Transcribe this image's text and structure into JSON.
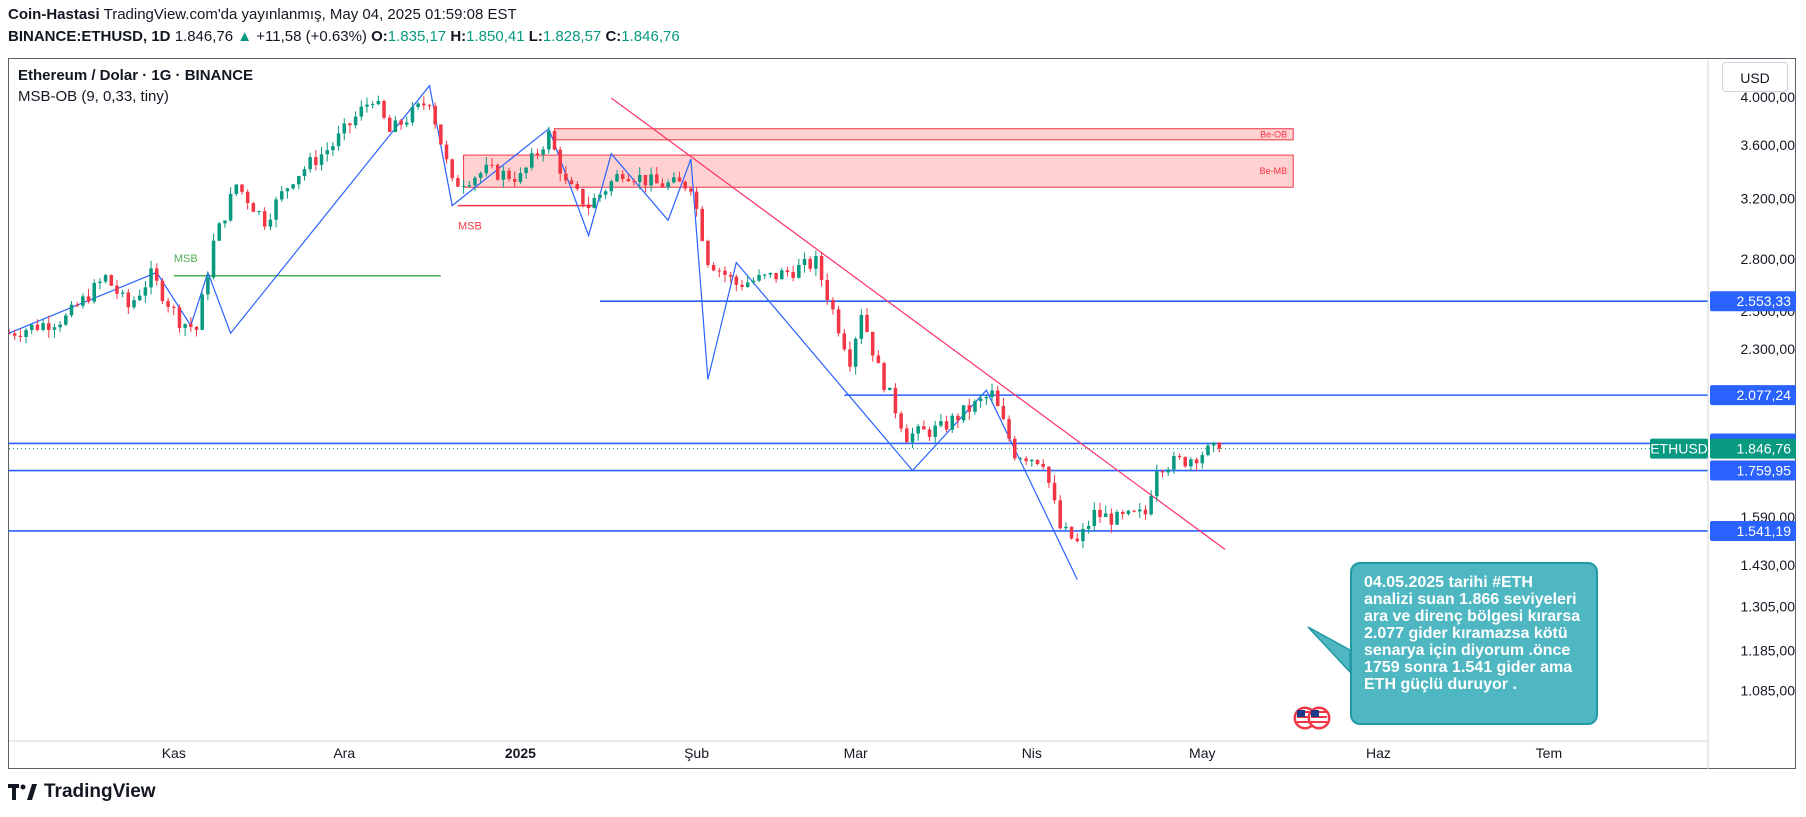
{
  "header": {
    "author": "Coin-Hastasi",
    "published_text": "TradingView.com'da yayınlanmış, May 04, 2025 01:59:08 EST",
    "symbol": "BINANCE:ETHUSD, 1D",
    "last": "1.846,76",
    "change_arrow": "▲",
    "change": "+11,58 (+0.63%)",
    "o_label": "O:",
    "o": "1.835,17",
    "h_label": "H:",
    "h": "1.850,41",
    "l_label": "L:",
    "l": "1.828,57",
    "c_label": "C:",
    "c": "1.846,76"
  },
  "legend": {
    "title": "Ethereum / Dolar · 1G · BINANCE",
    "indicator": "MSB-OB (9, 0,33, tiny)"
  },
  "currency_button": "USD",
  "footer": {
    "brand": "TradingView"
  },
  "note": {
    "text": "04.05.2025 tarihi #ETH analizi suan 1.866 seviyeleri ara ve direnç bölgesi kırarsa 2.077 gider kıramazsa kötü senarya için diyorum .önce 1759 sonra 1.541 gider ama ETH güçlü duruyor ."
  },
  "colors": {
    "up": "#089981",
    "down": "#f23645",
    "hline": "#2962ff",
    "trend": "#ff2e63",
    "zone_fill": "#ffc9c9",
    "zone_border": "#f23645",
    "msb_green": "#4caf50",
    "zigzag": "#2962ff",
    "note_bg": "#4eb7c2"
  },
  "chart_data": {
    "type": "candlestick",
    "symbol": "ETHUSD",
    "yscale": "log",
    "ylim": [
      980,
      4300
    ],
    "y_ticks": [
      {
        "value": 4000,
        "label": "4.000,00"
      },
      {
        "value": 3600,
        "label": "3.600,00"
      },
      {
        "value": 3200,
        "label": "3.200,00"
      },
      {
        "value": 2800,
        "label": "2.800,00"
      },
      {
        "value": 2500,
        "label": "2.500,00"
      },
      {
        "value": 2300,
        "label": "2.300,00"
      },
      {
        "value": 2077.24,
        "label": "2.077,24"
      },
      {
        "value": 1867.97,
        "label": "1.867,97"
      },
      {
        "value": 1590,
        "label": "1.590,00"
      },
      {
        "value": 1430,
        "label": "1.430,00"
      },
      {
        "value": 1305,
        "label": "1.305,00"
      },
      {
        "value": 1185,
        "label": "1.185,00"
      },
      {
        "value": 1085,
        "label": "1.085,00"
      }
    ],
    "x_ticks": [
      {
        "date": "2024-11-01",
        "label": "Kas",
        "bold": false
      },
      {
        "date": "2024-12-01",
        "label": "Ara",
        "bold": false
      },
      {
        "date": "2025-01-01",
        "label": "2025",
        "bold": true
      },
      {
        "date": "2025-02-01",
        "label": "Şub",
        "bold": false
      },
      {
        "date": "2025-03-01",
        "label": "Mar",
        "bold": false
      },
      {
        "date": "2025-04-01",
        "label": "Nis",
        "bold": false
      },
      {
        "date": "2025-05-01",
        "label": "May",
        "bold": false
      },
      {
        "date": "2025-06-01",
        "label": "Haz",
        "bold": false
      },
      {
        "date": "2025-07-01",
        "label": "Tem",
        "bold": false
      }
    ],
    "x_range": [
      "2024-10-03",
      "2025-07-29"
    ],
    "price_path": [
      {
        "date": "2024-10-03",
        "close": 2380
      },
      {
        "date": "2024-10-13",
        "close": 2460
      },
      {
        "date": "2024-10-20",
        "close": 2690
      },
      {
        "date": "2024-10-24",
        "close": 2520
      },
      {
        "date": "2024-10-28",
        "close": 2700
      },
      {
        "date": "2024-11-02",
        "close": 2450
      },
      {
        "date": "2024-11-05",
        "close": 2400
      },
      {
        "date": "2024-11-08",
        "close": 2900
      },
      {
        "date": "2024-11-12",
        "close": 3300
      },
      {
        "date": "2024-11-17",
        "close": 3050
      },
      {
        "date": "2024-11-22",
        "close": 3350
      },
      {
        "date": "2024-11-29",
        "close": 3600
      },
      {
        "date": "2024-12-06",
        "close": 4000
      },
      {
        "date": "2024-12-09",
        "close": 3700
      },
      {
        "date": "2024-12-16",
        "close": 3980
      },
      {
        "date": "2024-12-20",
        "close": 3300
      },
      {
        "date": "2024-12-26",
        "close": 3400
      },
      {
        "date": "2025-01-01",
        "close": 3350
      },
      {
        "date": "2025-01-06",
        "close": 3680
      },
      {
        "date": "2025-01-09",
        "close": 3300
      },
      {
        "date": "2025-01-13",
        "close": 3150
      },
      {
        "date": "2025-01-19",
        "close": 3400
      },
      {
        "date": "2025-01-25",
        "close": 3300
      },
      {
        "date": "2025-01-31",
        "close": 3300
      },
      {
        "date": "2025-02-03",
        "close": 2800
      },
      {
        "date": "2025-02-08",
        "close": 2650
      },
      {
        "date": "2025-02-15",
        "close": 2700
      },
      {
        "date": "2025-02-22",
        "close": 2780
      },
      {
        "date": "2025-02-25",
        "close": 2500
      },
      {
        "date": "2025-02-28",
        "close": 2250
      },
      {
        "date": "2025-03-02",
        "close": 2500
      },
      {
        "date": "2025-03-05",
        "close": 2200
      },
      {
        "date": "2025-03-10",
        "close": 1900
      },
      {
        "date": "2025-03-16",
        "close": 1930
      },
      {
        "date": "2025-03-20",
        "close": 2000
      },
      {
        "date": "2025-03-25",
        "close": 2080
      },
      {
        "date": "2025-03-29",
        "close": 1830
      },
      {
        "date": "2025-04-03",
        "close": 1800
      },
      {
        "date": "2025-04-06",
        "close": 1550
      },
      {
        "date": "2025-04-09",
        "close": 1500
      },
      {
        "date": "2025-04-12",
        "close": 1600
      },
      {
        "date": "2025-04-16",
        "close": 1580
      },
      {
        "date": "2025-04-21",
        "close": 1600
      },
      {
        "date": "2025-04-23",
        "close": 1780
      },
      {
        "date": "2025-04-28",
        "close": 1800
      },
      {
        "date": "2025-05-01",
        "close": 1830
      },
      {
        "date": "2025-05-04",
        "close": 1846.76
      }
    ],
    "horizontal_lines": [
      {
        "value": 2553.33,
        "label": "2.553,33",
        "from": "2025-01-15"
      },
      {
        "value": 2077.24,
        "label": "2.077,24",
        "from": "2025-02-27"
      },
      {
        "value": 1867.97,
        "label": "1.867,97",
        "from": "2024-10-03"
      },
      {
        "value": 1759.95,
        "label": "1.759,95",
        "from": "2024-10-03"
      },
      {
        "value": 1541.19,
        "label": "1.541,19",
        "from": "2024-10-03"
      }
    ],
    "last_price": {
      "value": 1846.76,
      "label": "1.846,76",
      "tag": "ETHUSD"
    },
    "zones": [
      {
        "label": "Be-OB",
        "from": "2025-01-07",
        "to": "2025-05-17",
        "top": 3730,
        "bottom": 3640
      },
      {
        "label": "Be-MB",
        "from": "2024-12-22",
        "to": "2025-05-17",
        "top": 3520,
        "bottom": 3280
      }
    ],
    "structure_lines": [
      {
        "label": "MSB",
        "color": "green",
        "value": 2700,
        "from": "2024-11-01",
        "to": "2024-12-18"
      },
      {
        "label": "MSB",
        "color": "red",
        "value": 3150,
        "from": "2024-12-21",
        "to": "2025-01-14"
      }
    ],
    "trend_line": {
      "from": {
        "date": "2025-01-17",
        "value": 3990
      },
      "to": {
        "date": "2025-05-05",
        "value": 1480
      }
    },
    "zigzag": [
      {
        "date": "2024-10-03",
        "value": 2380
      },
      {
        "date": "2024-10-29",
        "value": 2720
      },
      {
        "date": "2024-11-04",
        "value": 2420
      },
      {
        "date": "2024-11-07",
        "value": 2720
      },
      {
        "date": "2024-11-11",
        "value": 2380
      },
      {
        "date": "2024-12-16",
        "value": 4100
      },
      {
        "date": "2024-12-20",
        "value": 3150
      },
      {
        "date": "2025-01-06",
        "value": 3730
      },
      {
        "date": "2025-01-13",
        "value": 2950
      },
      {
        "date": "2025-01-17",
        "value": 3530
      },
      {
        "date": "2025-01-27",
        "value": 3050
      },
      {
        "date": "2025-01-31",
        "value": 3490
      },
      {
        "date": "2025-02-03",
        "value": 2150
      },
      {
        "date": "2025-02-08",
        "value": 2780
      },
      {
        "date": "2025-03-11",
        "value": 1760
      },
      {
        "date": "2025-03-24",
        "value": 2100
      },
      {
        "date": "2025-04-09",
        "value": 1385
      }
    ],
    "annotation": "04.05.2025 tarihi #ETH analizi suan 1.866 seviyeleri ara ve direnç bölgesi kırarsa 2.077 gider kıramazsa kötü senarya için diyorum .önce 1759 sonra 1.541 gider ama ETH güçlü duruyor ."
  }
}
